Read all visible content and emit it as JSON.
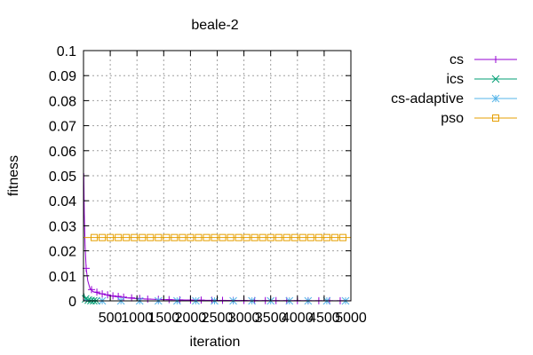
{
  "chart_data": {
    "type": "line",
    "title": "beale-2",
    "xlabel": "iteration",
    "ylabel": "fitness",
    "xlim": [
      0,
      5000
    ],
    "ylim": [
      0,
      0.1
    ],
    "xticks": [
      500,
      1000,
      1500,
      2000,
      2500,
      3000,
      3500,
      4000,
      4500,
      5000
    ],
    "yticks": [
      0,
      0.01,
      0.02,
      0.03,
      0.04,
      0.05,
      0.06,
      0.07,
      0.08,
      0.09,
      0.1
    ],
    "xtick_labels": [
      "500",
      "1000",
      "1500",
      "2000",
      "2500",
      "3000",
      "3500",
      "4000",
      "4500",
      "5000"
    ],
    "ytick_labels": [
      "0",
      "0.01",
      "0.02",
      "0.03",
      "0.04",
      "0.05",
      "0.06",
      "0.07",
      "0.08",
      "0.09",
      "0.1"
    ],
    "grid": true,
    "legend_position": "outside-right",
    "series": [
      {
        "name": "cs",
        "color": "#9400d3",
        "marker": "plus",
        "x": [
          5,
          15,
          30,
          50,
          80,
          120,
          160,
          200,
          300,
          400,
          500,
          600,
          800,
          1000,
          1200,
          1500,
          2000,
          2500,
          3000,
          3500,
          4000,
          4500,
          5000
        ],
        "y": [
          0.051,
          0.035,
          0.022,
          0.013,
          0.008,
          0.005,
          0.004,
          0.0035,
          0.003,
          0.0025,
          0.002,
          0.0017,
          0.0012,
          0.0009,
          0.0007,
          0.0005,
          0.0003,
          0.0002,
          0.00015,
          0.0001,
          8e-05,
          6e-05,
          5e-05
        ],
        "marker_x": [
          50,
          150,
          250,
          350,
          450,
          550,
          650,
          750,
          900,
          1050,
          1200,
          1400,
          1600,
          1800,
          2000,
          2200,
          2400,
          2600,
          2800,
          3000,
          3200,
          3400,
          3600,
          3800,
          4000,
          4200,
          4400,
          4600,
          4800
        ],
        "marker_y": [
          0.013,
          0.0045,
          0.0035,
          0.0028,
          0.0024,
          0.002,
          0.0018,
          0.0015,
          0.0012,
          0.001,
          0.0007,
          0.0006,
          0.0005,
          0.0004,
          0.0003,
          0.0003,
          0.0002,
          0.0002,
          0.00015,
          0.00015,
          0.0001,
          0.0001,
          0.0001,
          8e-05,
          8e-05,
          6e-05,
          6e-05,
          5e-05,
          5e-05
        ]
      },
      {
        "name": "ics",
        "color": "#009e73",
        "marker": "x",
        "x": [
          5,
          30,
          60,
          100,
          150,
          200,
          250,
          300
        ],
        "y": [
          0.003,
          0.001,
          0.0005,
          0.0002,
          0.0001,
          5e-05,
          2e-05,
          1e-05
        ],
        "marker_x": [
          40,
          90,
          140,
          190,
          240
        ],
        "marker_y": [
          0.0008,
          0.0003,
          0.0001,
          5e-05,
          2e-05
        ]
      },
      {
        "name": "cs-adaptive",
        "color": "#56b4e9",
        "marker": "star",
        "x": [
          5,
          100,
          500,
          1000,
          2000,
          3000,
          4000,
          5000
        ],
        "y": [
          0.0005,
          5e-05,
          1e-05,
          1e-05,
          1e-05,
          1e-05,
          1e-05,
          1e-05
        ],
        "marker_x": [
          350,
          700,
          1050,
          1400,
          1750,
          2100,
          2450,
          2800,
          3150,
          3500,
          3850,
          4200,
          4550,
          4900
        ],
        "marker_y": [
          1e-05,
          1e-05,
          1e-05,
          1e-05,
          1e-05,
          1e-05,
          1e-05,
          1e-05,
          1e-05,
          1e-05,
          1e-05,
          1e-05,
          1e-05,
          1e-05
        ]
      },
      {
        "name": "pso",
        "color": "#e69f00",
        "marker": "square",
        "x": [
          0,
          5000
        ],
        "y": [
          0.0253,
          0.0253
        ],
        "marker_x": [
          200,
          350,
          500,
          650,
          800,
          950,
          1100,
          1250,
          1400,
          1550,
          1700,
          1850,
          2000,
          2150,
          2300,
          2450,
          2600,
          2750,
          2900,
          3050,
          3200,
          3350,
          3500,
          3650,
          3800,
          3950,
          4100,
          4250,
          4400,
          4550,
          4700,
          4850
        ],
        "marker_y": [
          0.0253,
          0.0253,
          0.0253,
          0.0253,
          0.0253,
          0.0253,
          0.0253,
          0.0253,
          0.0253,
          0.0253,
          0.0253,
          0.0253,
          0.0253,
          0.0253,
          0.0253,
          0.0253,
          0.0253,
          0.0253,
          0.0253,
          0.0253,
          0.0253,
          0.0253,
          0.0253,
          0.0253,
          0.0253,
          0.0253,
          0.0253,
          0.0253,
          0.0253,
          0.0253,
          0.0253,
          0.0253
        ]
      }
    ]
  }
}
